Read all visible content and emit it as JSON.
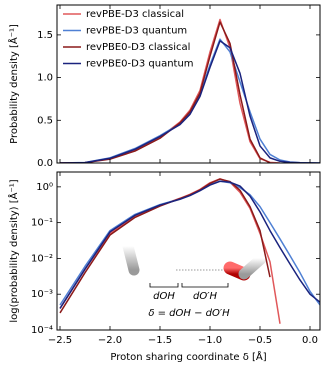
{
  "chart_data": [
    {
      "type": "line",
      "ylabel": "Probability density [Å⁻¹]",
      "legend": "upper left",
      "x": [
        -2.5,
        -2.25,
        -2.0,
        -1.75,
        -1.5,
        -1.3,
        -1.2,
        -1.1,
        -1.0,
        -0.9,
        -0.8,
        -0.7,
        -0.6,
        -0.5,
        -0.4,
        -0.3,
        -0.2,
        -0.1,
        0.0,
        0.1
      ],
      "xlim": [
        -2.53,
        0.1
      ],
      "xticks": [
        -2.5,
        -2,
        -1.5,
        -1,
        -0.5,
        0
      ],
      "ylim": [
        0,
        1.85
      ],
      "yticks": [
        {
          "value": 0,
          "label": "0.0"
        },
        {
          "value": 0.5,
          "label": "0.5"
        },
        {
          "value": 1,
          "label": "1.0"
        },
        {
          "value": 1.5,
          "label": "1.5"
        }
      ],
      "series": [
        {
          "name": "revPBE-D3 classical",
          "color": "#e0585a",
          "values": [
            0.0004,
            0.005,
            0.05,
            0.15,
            0.3,
            0.48,
            0.62,
            0.85,
            1.3,
            1.68,
            1.35,
            0.7,
            0.25,
            0.05,
            0.008,
            0.00015,
            null,
            null,
            null,
            null
          ]
        },
        {
          "name": "revPBE-D3 quantum",
          "color": "#4f80d4",
          "values": [
            0.0005,
            0.006,
            0.06,
            0.17,
            0.32,
            0.46,
            0.58,
            0.8,
            1.15,
            1.45,
            1.3,
            0.95,
            0.6,
            0.28,
            0.1,
            0.035,
            0.012,
            0.004,
            0.0012,
            0.0005
          ]
        },
        {
          "name": "revPBE0-D3 classical",
          "color": "#8b1a1a",
          "values": [
            0.0003,
            0.004,
            0.045,
            0.14,
            0.29,
            0.47,
            0.6,
            0.82,
            1.25,
            1.65,
            1.4,
            0.8,
            0.28,
            0.06,
            0.003,
            null,
            null,
            null,
            null,
            null
          ]
        },
        {
          "name": "revPBE0-D3 quantum",
          "color": "#1a237e",
          "values": [
            0.0004,
            0.005,
            0.055,
            0.16,
            0.31,
            0.45,
            0.57,
            0.78,
            1.12,
            1.43,
            1.35,
            1.05,
            0.55,
            0.2,
            0.06,
            0.02,
            0.007,
            0.0025,
            0.001,
            0.0006
          ]
        }
      ]
    },
    {
      "type": "line",
      "ylabel": "log(probability density) [Å⁻¹]",
      "xlabel": "Proton sharing coordinate δ [Å]",
      "log_y": true,
      "x": [
        -2.5,
        -2.25,
        -2.0,
        -1.75,
        -1.5,
        -1.3,
        -1.2,
        -1.1,
        -1.0,
        -0.9,
        -0.8,
        -0.7,
        -0.6,
        -0.5,
        -0.4,
        -0.3,
        -0.2,
        -0.1,
        0.0,
        0.1
      ],
      "xlim": [
        -2.53,
        0.1
      ],
      "xticks": [
        {
          "value": -2.5,
          "label": "−2.5"
        },
        {
          "value": -2,
          "label": "−2.0"
        },
        {
          "value": -1.5,
          "label": "−1.5"
        },
        {
          "value": -1,
          "label": "−1.0"
        },
        {
          "value": -0.5,
          "label": "−0.5"
        },
        {
          "value": 0,
          "label": "0.0"
        }
      ],
      "ylim": [
        0.0001,
        2.6
      ],
      "yticks": [
        {
          "value": 0.0001,
          "label": "10⁻⁴"
        },
        {
          "value": 0.001,
          "label": "10⁻³"
        },
        {
          "value": 0.01,
          "label": "10⁻²"
        },
        {
          "value": 0.1,
          "label": "10⁻¹"
        },
        {
          "value": 1,
          "label": "10⁰"
        }
      ],
      "annotations": [
        "dOH",
        "dO′H",
        "δ = dOH − dO′H"
      ],
      "series": [
        {
          "name": "revPBE-D3 classical",
          "color": "#e0585a",
          "values": [
            0.0004,
            0.005,
            0.05,
            0.15,
            0.3,
            0.48,
            0.62,
            0.85,
            1.3,
            1.68,
            1.35,
            0.7,
            0.25,
            0.05,
            0.008,
            0.00015,
            null,
            null,
            null,
            null
          ]
        },
        {
          "name": "revPBE-D3 quantum",
          "color": "#4f80d4",
          "values": [
            0.0005,
            0.006,
            0.06,
            0.17,
            0.32,
            0.46,
            0.58,
            0.8,
            1.15,
            1.45,
            1.3,
            0.95,
            0.6,
            0.28,
            0.1,
            0.035,
            0.012,
            0.004,
            0.0012,
            0.0005
          ]
        },
        {
          "name": "revPBE0-D3 classical",
          "color": "#8b1a1a",
          "values": [
            0.0003,
            0.004,
            0.045,
            0.14,
            0.29,
            0.47,
            0.6,
            0.82,
            1.25,
            1.65,
            1.4,
            0.8,
            0.28,
            0.06,
            0.003,
            null,
            null,
            null,
            null,
            null
          ]
        },
        {
          "name": "revPBE0-D3 quantum",
          "color": "#1a237e",
          "values": [
            0.0004,
            0.005,
            0.055,
            0.16,
            0.31,
            0.45,
            0.57,
            0.78,
            1.12,
            1.43,
            1.35,
            1.05,
            0.55,
            0.2,
            0.06,
            0.02,
            0.007,
            0.0025,
            0.001,
            0.0006
          ]
        }
      ]
    }
  ]
}
